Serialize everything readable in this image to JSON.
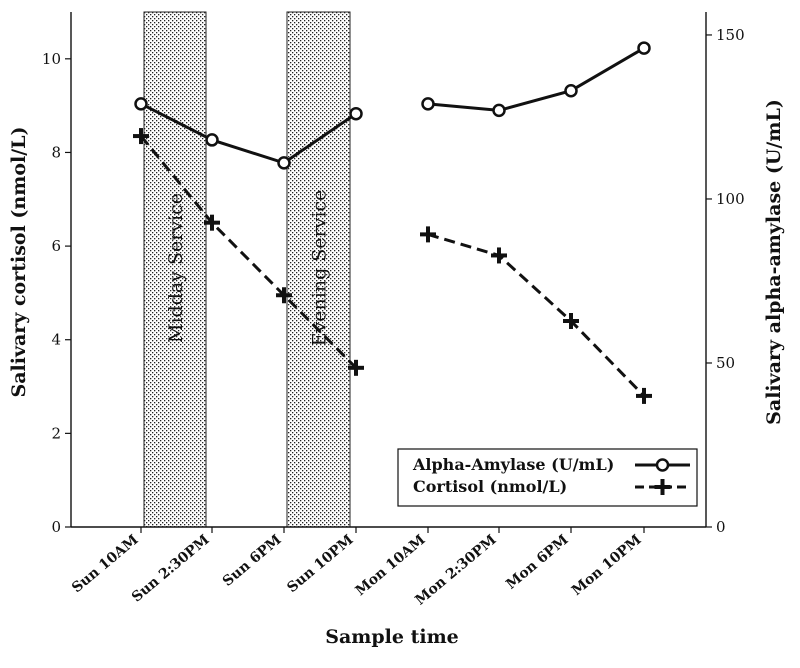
{
  "chart_data": {
    "type": "line",
    "x_label": "Sample time",
    "y_left_label": "Salivary cortisol (nmol/L)",
    "y_right_label": "Salivary alpha-amylase (U/mL)",
    "y_left_lim": [
      0,
      11
    ],
    "y_left_ticks": [
      0,
      2,
      4,
      6,
      8,
      10
    ],
    "y_right_lim": [
      0,
      157
    ],
    "y_right_ticks": [
      0,
      50,
      100,
      150
    ],
    "categories": [
      "Sun 10AM",
      "Sun 2:30PM",
      "Sun 6PM",
      "Sun 10PM",
      "Mon 10AM",
      "Mon 2:30PM",
      "Mon 6PM",
      "Mon 10PM"
    ],
    "series": [
      {
        "name": "Alpha-Amylase (U/mL)",
        "axis": "right",
        "style": "solid",
        "marker": "circle",
        "values": [
          129,
          118,
          111,
          126,
          129,
          127,
          133,
          146
        ],
        "segments": [
          [
            0,
            3
          ],
          [
            4,
            7
          ]
        ]
      },
      {
        "name": "Cortisol (nmol/L)",
        "axis": "left",
        "style": "dashed",
        "marker": "plus",
        "values": [
          8.35,
          6.5,
          4.95,
          3.4,
          6.25,
          5.8,
          4.4,
          2.8
        ],
        "segments": [
          [
            0,
            3
          ],
          [
            4,
            7
          ]
        ]
      }
    ],
    "shaded_periods": [
      {
        "label": "Midday Service",
        "from_index": 0,
        "to_index": 1
      },
      {
        "label": "Evening Service",
        "from_index": 2,
        "to_index": 3
      }
    ],
    "legend": {
      "position": "bottom-right",
      "entries": [
        "Alpha-Amylase (U/mL)",
        "Cortisol (nmol/L)"
      ]
    }
  }
}
